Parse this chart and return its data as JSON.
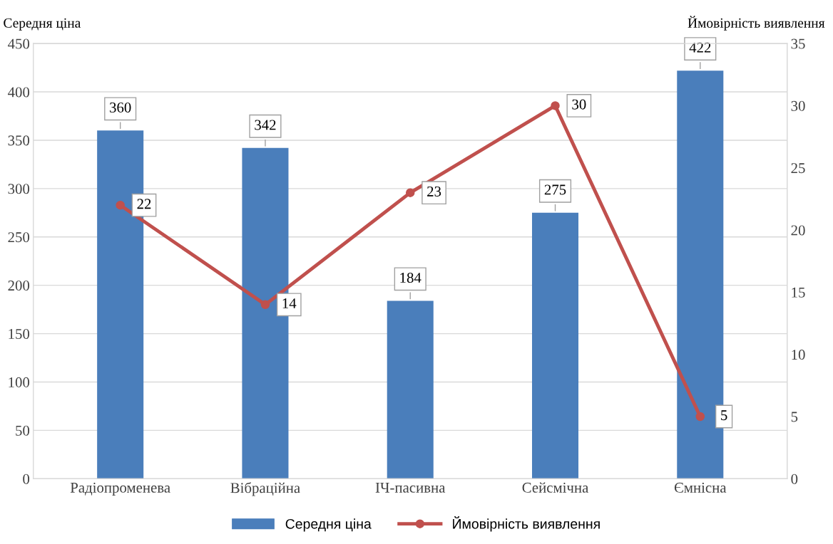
{
  "chart_data": {
    "type": "bar",
    "categories": [
      "Радіопроменева",
      "Вібраційна",
      "ІЧ-пасивна",
      "Сейсмічна",
      "Ємнісна"
    ],
    "ylabel": "Середня ціна",
    "y2label": "Ймовірність виявлення",
    "series": [
      {
        "name": "Середня ціна",
        "color": "#4a7ebb",
        "values": [
          360,
          342,
          184,
          275,
          422
        ]
      },
      {
        "name": "Ймовірність виявлення",
        "type": "line",
        "axis": "y2",
        "color": "#c0504d",
        "marker": "circle",
        "values": [
          22,
          14,
          23,
          30,
          5
        ]
      }
    ],
    "ylim": [
      0,
      450
    ],
    "yticks": [
      0,
      50,
      100,
      150,
      200,
      250,
      300,
      350,
      400,
      450
    ],
    "y2lim": [
      0,
      35
    ],
    "y2ticks": [
      0,
      5,
      10,
      15,
      20,
      25,
      30,
      35
    ],
    "grid": "y",
    "legend": "bottom",
    "data_labels": true
  }
}
